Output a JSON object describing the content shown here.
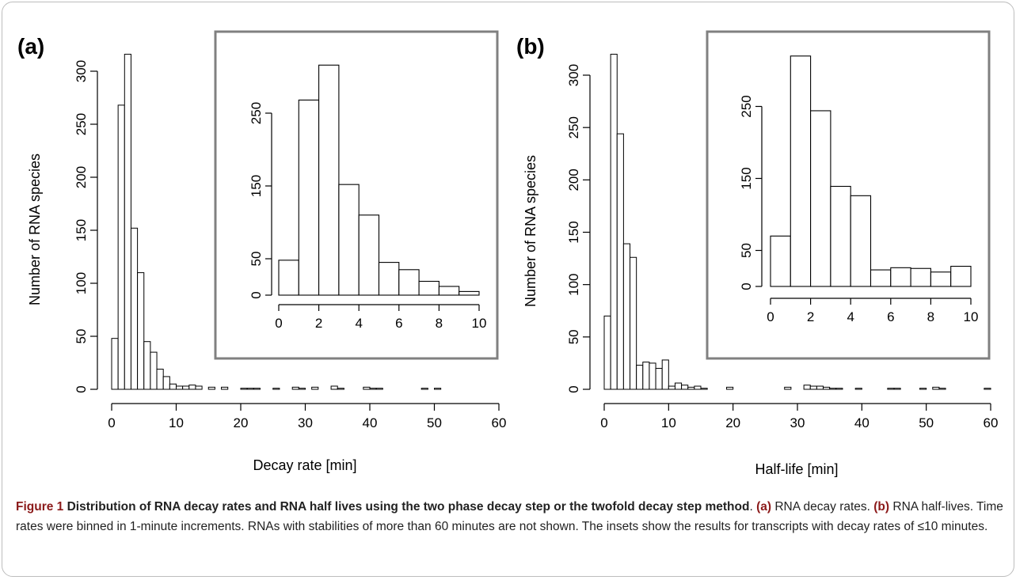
{
  "figure": {
    "caption_label": "Figure 1",
    "caption_title": "Distribution of RNA decay rates and RNA half lives using the two phase decay step or the twofold decay step method",
    "caption_part_a_tag": "(a)",
    "caption_part_a_text": "RNA decay rates.",
    "caption_part_b_tag": "(b)",
    "caption_part_b_text": "RNA half-lives. Time rates were binned in 1-minute increments. RNAs with stabilities of more than 60 minutes are not shown. The insets show the results for transcripts with decay rates of ≤10 minutes."
  },
  "chart_data": [
    {
      "panel": "(a)",
      "type": "bar",
      "xlabel": "Decay rate [min]",
      "ylabel": "Number of RNA species",
      "xlim": [
        0,
        60
      ],
      "ylim": [
        0,
        300
      ],
      "xticks": [
        0,
        10,
        20,
        30,
        40,
        50,
        60
      ],
      "yticks": [
        0,
        50,
        100,
        150,
        200,
        250,
        300
      ],
      "bin_width": 1,
      "bin_starts": [
        0,
        1,
        2,
        3,
        4,
        5,
        6,
        7,
        8,
        9,
        10,
        11,
        12,
        13,
        14,
        15,
        16,
        17,
        18,
        19,
        20,
        21,
        22,
        23,
        24,
        25,
        26,
        27,
        28,
        29,
        30,
        31,
        32,
        33,
        34,
        35,
        36,
        37,
        38,
        39,
        40,
        41,
        42,
        43,
        44,
        45,
        46,
        47,
        48,
        49,
        50,
        51,
        52,
        53,
        54,
        55,
        56,
        57,
        58,
        59
      ],
      "values": [
        48,
        268,
        316,
        152,
        110,
        45,
        35,
        19,
        12,
        5,
        3,
        3,
        4,
        3,
        0,
        2,
        0,
        2,
        0,
        0,
        1,
        1,
        1,
        0,
        0,
        1,
        0,
        0,
        2,
        1,
        0,
        2,
        0,
        0,
        3,
        1,
        0,
        0,
        0,
        2,
        1,
        1,
        0,
        0,
        0,
        0,
        0,
        0,
        1,
        0,
        1,
        0,
        0,
        0,
        0,
        0,
        0,
        0,
        0,
        0
      ],
      "inset": {
        "type": "bar",
        "xlim": [
          0,
          10
        ],
        "ylim": [
          0,
          300
        ],
        "xticks": [
          0,
          2,
          4,
          6,
          8,
          10
        ],
        "yticks": [
          0,
          50,
          150,
          250
        ],
        "bin_starts": [
          0,
          1,
          2,
          3,
          4,
          5,
          6,
          7,
          8,
          9
        ],
        "values": [
          48,
          268,
          316,
          152,
          110,
          45,
          35,
          19,
          12,
          5
        ]
      }
    },
    {
      "panel": "(b)",
      "type": "bar",
      "xlabel": "Half-life [min]",
      "ylabel": "Number of RNA species",
      "xlim": [
        0,
        60
      ],
      "ylim": [
        0,
        300
      ],
      "xticks": [
        0,
        10,
        20,
        30,
        40,
        50,
        60
      ],
      "yticks": [
        0,
        50,
        100,
        150,
        200,
        250,
        300
      ],
      "bin_width": 1,
      "bin_starts": [
        0,
        1,
        2,
        3,
        4,
        5,
        6,
        7,
        8,
        9,
        10,
        11,
        12,
        13,
        14,
        15,
        16,
        17,
        18,
        19,
        20,
        21,
        22,
        23,
        24,
        25,
        26,
        27,
        28,
        29,
        30,
        31,
        32,
        33,
        34,
        35,
        36,
        37,
        38,
        39,
        40,
        41,
        42,
        43,
        44,
        45,
        46,
        47,
        48,
        49,
        50,
        51,
        52,
        53,
        54,
        55,
        56,
        57,
        58,
        59
      ],
      "values": [
        70,
        320,
        244,
        139,
        126,
        23,
        26,
        25,
        20,
        28,
        3,
        6,
        4,
        2,
        3,
        1,
        0,
        0,
        0,
        2,
        0,
        0,
        0,
        0,
        0,
        0,
        0,
        0,
        2,
        0,
        0,
        4,
        3,
        3,
        2,
        1,
        1,
        0,
        0,
        1,
        0,
        0,
        0,
        0,
        1,
        1,
        0,
        0,
        0,
        1,
        0,
        2,
        1,
        0,
        0,
        0,
        0,
        0,
        0,
        1
      ],
      "inset": {
        "type": "bar",
        "xlim": [
          0,
          10
        ],
        "ylim": [
          0,
          300
        ],
        "xticks": [
          0,
          2,
          4,
          6,
          8,
          10
        ],
        "yticks": [
          0,
          50,
          150,
          250
        ],
        "bin_starts": [
          0,
          1,
          2,
          3,
          4,
          5,
          6,
          7,
          8,
          9
        ],
        "values": [
          70,
          320,
          244,
          139,
          126,
          23,
          26,
          25,
          20,
          28
        ]
      }
    }
  ]
}
